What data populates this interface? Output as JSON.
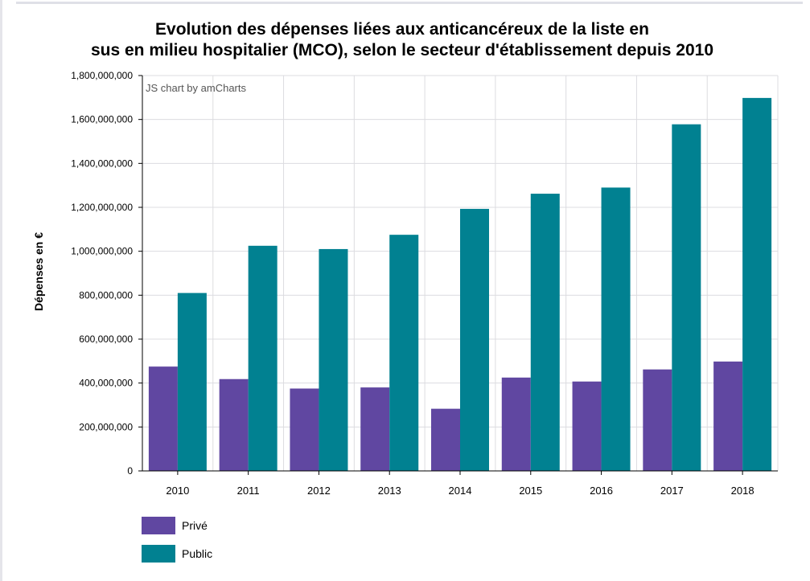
{
  "chart_data": {
    "type": "bar",
    "title_lines": [
      "Evolution des dépenses liées aux anticancéreux de la liste en",
      "sus en milieu hospitalier (MCO), selon le secteur d'établissement depuis 2010"
    ],
    "credit": "JS chart by amCharts",
    "ylabel": "Dépenses en €",
    "xlabel": "",
    "ylim": [
      0,
      1800000000
    ],
    "y_ticks": [
      0,
      200000000,
      400000000,
      600000000,
      800000000,
      1000000000,
      1200000000,
      1400000000,
      1600000000,
      1800000000
    ],
    "y_tick_labels": [
      "0",
      "200,000,000",
      "400,000,000",
      "600,000,000",
      "800,000,000",
      "1,000,000,000",
      "1,200,000,000",
      "1,400,000,000",
      "1,600,000,000",
      "1,800,000,000"
    ],
    "categories": [
      "2010",
      "2011",
      "2012",
      "2013",
      "2014",
      "2015",
      "2016",
      "2017",
      "2018"
    ],
    "grid": true,
    "legend_position": "bottom-left",
    "series": [
      {
        "name": "Privé",
        "color": "#6047a1",
        "values": [
          475000000,
          418000000,
          375000000,
          380000000,
          283000000,
          425000000,
          407000000,
          462000000,
          498000000
        ]
      },
      {
        "name": "Public",
        "color": "#018191",
        "values": [
          810000000,
          1025000000,
          1010000000,
          1075000000,
          1193000000,
          1262000000,
          1290000000,
          1578000000,
          1698000000
        ]
      }
    ]
  }
}
